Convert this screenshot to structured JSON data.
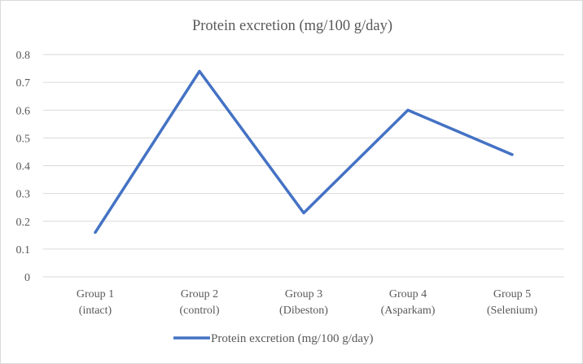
{
  "chart_data": {
    "type": "line",
    "title": "Protein excretion (mg/100 g/day)",
    "categories": [
      [
        "Group 1",
        "(intact)"
      ],
      [
        "Group 2",
        "(control)"
      ],
      [
        "Group 3",
        "(Dibeston)"
      ],
      [
        "Group 4",
        "(Asparkam)"
      ],
      [
        "Group 5",
        "(Selenium)"
      ]
    ],
    "series": [
      {
        "name": "Protein excretion (mg/100 g/day)",
        "values": [
          0.16,
          0.74,
          0.23,
          0.6,
          0.44
        ],
        "color": "#4472c4"
      }
    ],
    "ylim": [
      0,
      0.8
    ],
    "yticks": [
      "0",
      "0.1",
      "0.2",
      "0.3",
      "0.4",
      "0.5",
      "0.6",
      "0.7",
      "0.8"
    ],
    "grid": true,
    "legend": "bottom"
  }
}
